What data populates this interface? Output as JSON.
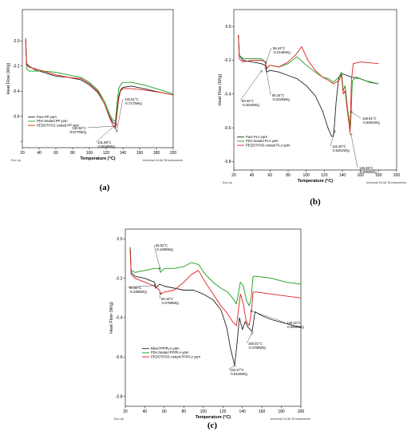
{
  "chart_data": [
    {
      "panel_label": "(a)",
      "type": "line",
      "xlabel": "Temperature (°C)",
      "ylabel": "Heat Flow (W/g)",
      "xlim": [
        20,
        200
      ],
      "ylim": [
        -0.85,
        0.25
      ],
      "xticks": [
        20,
        40,
        60,
        80,
        100,
        120,
        140,
        160,
        180,
        200
      ],
      "yticks": [
        -0.8,
        -0.6,
        -0.4,
        -0.2,
        0.0
      ],
      "ytick_labels": [
        "",
        "-0.6",
        "-0.4",
        "-0.2",
        "0.0"
      ],
      "footer_left": "Exo Up",
      "footer_right": "Universal V4.5A TA Instruments",
      "legend": {
        "placement": "lower-left"
      },
      "series": [
        {
          "name": "Pure PP yarn",
          "color": "#222222",
          "x": [
            24,
            25,
            28,
            35,
            45,
            60,
            75,
            90,
            100,
            110,
            118,
            124,
            128,
            131,
            133,
            135,
            137,
            140,
            150,
            165,
            185,
            200
          ],
          "y": [
            0.02,
            -0.18,
            -0.2,
            -0.23,
            -0.25,
            -0.28,
            -0.29,
            -0.31,
            -0.35,
            -0.41,
            -0.5,
            -0.6,
            -0.65,
            -0.66,
            -0.56,
            -0.44,
            -0.39,
            -0.37,
            -0.36,
            -0.38,
            -0.41,
            -0.43
          ]
        },
        {
          "name": "PDA treated PP yarn",
          "color": "#1a9c1a",
          "x": [
            24,
            25,
            28,
            35,
            45,
            60,
            75,
            90,
            100,
            110,
            118,
            124,
            128,
            131,
            133,
            135,
            137,
            140,
            150,
            165,
            185,
            200
          ],
          "y": [
            0.0,
            -0.22,
            -0.24,
            -0.24,
            -0.24,
            -0.25,
            -0.27,
            -0.29,
            -0.33,
            -0.39,
            -0.48,
            -0.58,
            -0.63,
            -0.64,
            -0.5,
            -0.38,
            -0.35,
            -0.33,
            -0.33,
            -0.35,
            -0.39,
            -0.42
          ]
        },
        {
          "name": "PEDOT:PSS coated PP yarn",
          "color": "#e02020",
          "x": [
            24,
            25,
            28,
            35,
            45,
            60,
            75,
            90,
            100,
            110,
            118,
            124,
            128,
            131,
            133,
            135,
            137,
            140,
            150,
            165,
            185,
            200
          ],
          "y": [
            0.01,
            -0.19,
            -0.21,
            -0.22,
            -0.24,
            -0.27,
            -0.29,
            -0.3,
            -0.34,
            -0.4,
            -0.5,
            -0.61,
            -0.67,
            -0.7,
            -0.58,
            -0.46,
            -0.4,
            -0.38,
            -0.38,
            -0.39,
            -0.41,
            -0.43
          ]
        }
      ],
      "annotations": [
        {
          "lines": [
            "130.92°C",
            "-0.6779W/g"
          ],
          "x": 130.92,
          "y": -0.6779
        },
        {
          "lines": [
            "132.61°C",
            "-0.7172W/g"
          ],
          "x": 132.61,
          "y": -0.7172
        },
        {
          "lines": [
            "131.98°C",
            "-0.6648W/g"
          ],
          "x": 131.98,
          "y": -0.6648
        }
      ]
    },
    {
      "panel_label": "(b)",
      "type": "line",
      "xlabel": "Temperature (°C)",
      "ylabel": "Heat Flow (W/g)",
      "xlim": [
        20,
        200
      ],
      "ylim": [
        -0.85,
        0.1
      ],
      "xticks": [
        20,
        40,
        60,
        80,
        100,
        120,
        140,
        160,
        180,
        200
      ],
      "yticks": [
        -0.8,
        -0.6,
        -0.4,
        -0.2,
        0.0
      ],
      "ytick_labels": [
        "-0.8",
        "-0.6",
        "-0.4",
        "-0.2",
        "0.0"
      ],
      "footer_left": "Exo Up",
      "footer_right": "Universal V4.5A TA Instruments",
      "legend": {
        "placement": "lower-left"
      },
      "series": [
        {
          "name": "Pure PLA yarn",
          "color": "#222222",
          "x": [
            25,
            26,
            30,
            40,
            50,
            55,
            56,
            60,
            70,
            80,
            90,
            100,
            110,
            118,
            124,
            128,
            130,
            131,
            133,
            136,
            140,
            145,
            150,
            160,
            170,
            180
          ],
          "y": [
            -0.05,
            -0.17,
            -0.2,
            -0.21,
            -0.22,
            -0.23,
            -0.27,
            -0.26,
            -0.27,
            -0.29,
            -0.31,
            -0.35,
            -0.41,
            -0.5,
            -0.6,
            -0.65,
            -0.65,
            -0.6,
            -0.45,
            -0.3,
            -0.28,
            -0.29,
            -0.3,
            -0.31,
            -0.33,
            -0.34
          ]
        },
        {
          "name": "PDA treated PLA yarn",
          "color": "#1a9c1a",
          "x": [
            25,
            26,
            30,
            40,
            50,
            55,
            56,
            60,
            70,
            80,
            90,
            100,
            110,
            118,
            125,
            130,
            136,
            139,
            141,
            143,
            146,
            149,
            151,
            155,
            165,
            180
          ],
          "y": [
            -0.06,
            -0.17,
            -0.19,
            -0.19,
            -0.19,
            -0.21,
            -0.25,
            -0.23,
            -0.24,
            -0.22,
            -0.18,
            -0.23,
            -0.27,
            -0.3,
            -0.31,
            -0.33,
            -0.3,
            -0.27,
            -0.38,
            -0.35,
            -0.5,
            -0.6,
            -0.32,
            -0.3,
            -0.32,
            -0.34
          ]
        },
        {
          "name": "PEDOT:PSS coated PLA yarn",
          "color": "#e02020",
          "x": [
            25,
            26,
            30,
            40,
            50,
            55,
            56,
            60,
            70,
            80,
            88,
            95,
            102,
            110,
            118,
            125,
            130,
            136,
            139,
            141,
            143,
            146,
            148.5,
            150,
            152,
            160,
            180
          ],
          "y": [
            -0.05,
            -0.19,
            -0.21,
            -0.2,
            -0.2,
            -0.21,
            -0.25,
            -0.23,
            -0.24,
            -0.21,
            -0.17,
            -0.12,
            -0.2,
            -0.26,
            -0.3,
            -0.32,
            -0.34,
            -0.32,
            -0.29,
            -0.4,
            -0.38,
            -0.52,
            -0.63,
            -0.32,
            -0.22,
            -0.21,
            -0.22
          ]
        }
      ],
      "annotations": [
        {
          "lines": [
            "55.44°C",
            "-0.2146W/g"
          ],
          "x": 55.44,
          "y": -0.2146
        },
        {
          "lines": [
            "55.44°C",
            "-0.2426W/g"
          ],
          "x": 55.44,
          "y": -0.2426
        },
        {
          "lines": [
            "50.44°C",
            "-0.2642W/g"
          ],
          "x": 50.44,
          "y": -0.2642
        },
        {
          "lines": [
            "149.91°C",
            "-0.5061W/g"
          ],
          "x": 149.91,
          "y": -0.5061
        },
        {
          "lines": [
            "149.46°C",
            "-0.6369W/g"
          ],
          "x": 149.46,
          "y": -0.6369
        },
        {
          "lines": [
            "131.50°C",
            "-0.6201W/g"
          ],
          "x": 131.5,
          "y": -0.6201
        }
      ]
    },
    {
      "panel_label": "(c)",
      "type": "line",
      "xlabel": "Temperature (°C)",
      "ylabel": "Heat Flow (W/g)",
      "xlim": [
        20,
        200
      ],
      "ylim": [
        -0.85,
        0.05
      ],
      "xticks": [
        20,
        40,
        60,
        80,
        100,
        120,
        140,
        160,
        180,
        200
      ],
      "yticks": [
        -0.8,
        -0.6,
        -0.4,
        -0.2,
        0.0
      ],
      "ytick_labels": [
        "-0.8",
        "-0.6",
        "-0.4",
        "-0.2",
        "0.0"
      ],
      "footer_left": "Exo Up",
      "footer_right": "Universal V4.5A TA Instruments",
      "legend": {
        "placement": "lower-left"
      },
      "series": [
        {
          "name": "Blend PP/PLA yarn",
          "color": "#222222",
          "x": [
            25,
            26,
            30,
            40,
            50,
            51,
            55,
            60,
            70,
            80,
            90,
            100,
            110,
            118,
            124,
            128,
            132,
            134,
            137,
            140,
            143,
            146,
            150,
            153,
            160,
            170,
            185,
            200
          ],
          "y": [
            -0.05,
            -0.17,
            -0.19,
            -0.2,
            -0.22,
            -0.25,
            -0.23,
            -0.24,
            -0.25,
            -0.26,
            -0.26,
            -0.28,
            -0.31,
            -0.36,
            -0.45,
            -0.56,
            -0.64,
            -0.56,
            -0.4,
            -0.46,
            -0.42,
            -0.45,
            -0.47,
            -0.37,
            -0.39,
            -0.41,
            -0.43,
            -0.45
          ]
        },
        {
          "name": "PDA treated PP/PLA yarn",
          "color": "#1a9c1a",
          "x": [
            25,
            26,
            30,
            40,
            50,
            55,
            56,
            60,
            70,
            80,
            88,
            95,
            102,
            110,
            118,
            125,
            130,
            134,
            138,
            141,
            144,
            147,
            149,
            151,
            155,
            170,
            185,
            200
          ],
          "y": [
            -0.04,
            -0.16,
            -0.17,
            -0.16,
            -0.15,
            -0.15,
            -0.17,
            -0.15,
            -0.15,
            -0.14,
            -0.12,
            -0.13,
            -0.18,
            -0.22,
            -0.25,
            -0.27,
            -0.3,
            -0.33,
            -0.22,
            -0.24,
            -0.31,
            -0.34,
            -0.3,
            -0.19,
            -0.19,
            -0.2,
            -0.22,
            -0.23
          ]
        },
        {
          "name": "PEDOT:PSS coated PP/PLA yarn",
          "color": "#e02020",
          "x": [
            25,
            26,
            30,
            40,
            50,
            55,
            56,
            60,
            70,
            80,
            88,
            95,
            102,
            110,
            118,
            125,
            130,
            134,
            138,
            141,
            144,
            147,
            149,
            151,
            155,
            170,
            185,
            200
          ],
          "y": [
            -0.05,
            -0.18,
            -0.2,
            -0.22,
            -0.24,
            -0.26,
            -0.28,
            -0.27,
            -0.26,
            -0.22,
            -0.18,
            -0.16,
            -0.22,
            -0.28,
            -0.34,
            -0.38,
            -0.42,
            -0.44,
            -0.28,
            -0.33,
            -0.42,
            -0.44,
            -0.38,
            -0.27,
            -0.27,
            -0.28,
            -0.29,
            -0.3
          ]
        }
      ],
      "annotations": [
        {
          "lines": [
            "55.52°C",
            "-0.1495W/g"
          ],
          "x": 55.52,
          "y": -0.1495
        },
        {
          "lines": [
            "50.55°C",
            "-0.2365W/g"
          ],
          "x": 50.55,
          "y": -0.2365
        },
        {
          "lines": [
            "56.16°C",
            "-0.2769W/g"
          ],
          "x": 56.16,
          "y": -0.2769
        },
        {
          "lines": [
            "149.15°C",
            "-0.3660W/g"
          ],
          "x": 149.15,
          "y": -0.366
        },
        {
          "lines": [
            "150.01°C",
            "-0.4780W/g"
          ],
          "x": 150.01,
          "y": -0.478
        },
        {
          "lines": [
            "132.27°C",
            "-0.6440W/g"
          ],
          "x": 132.27,
          "y": -0.644
        }
      ]
    }
  ]
}
